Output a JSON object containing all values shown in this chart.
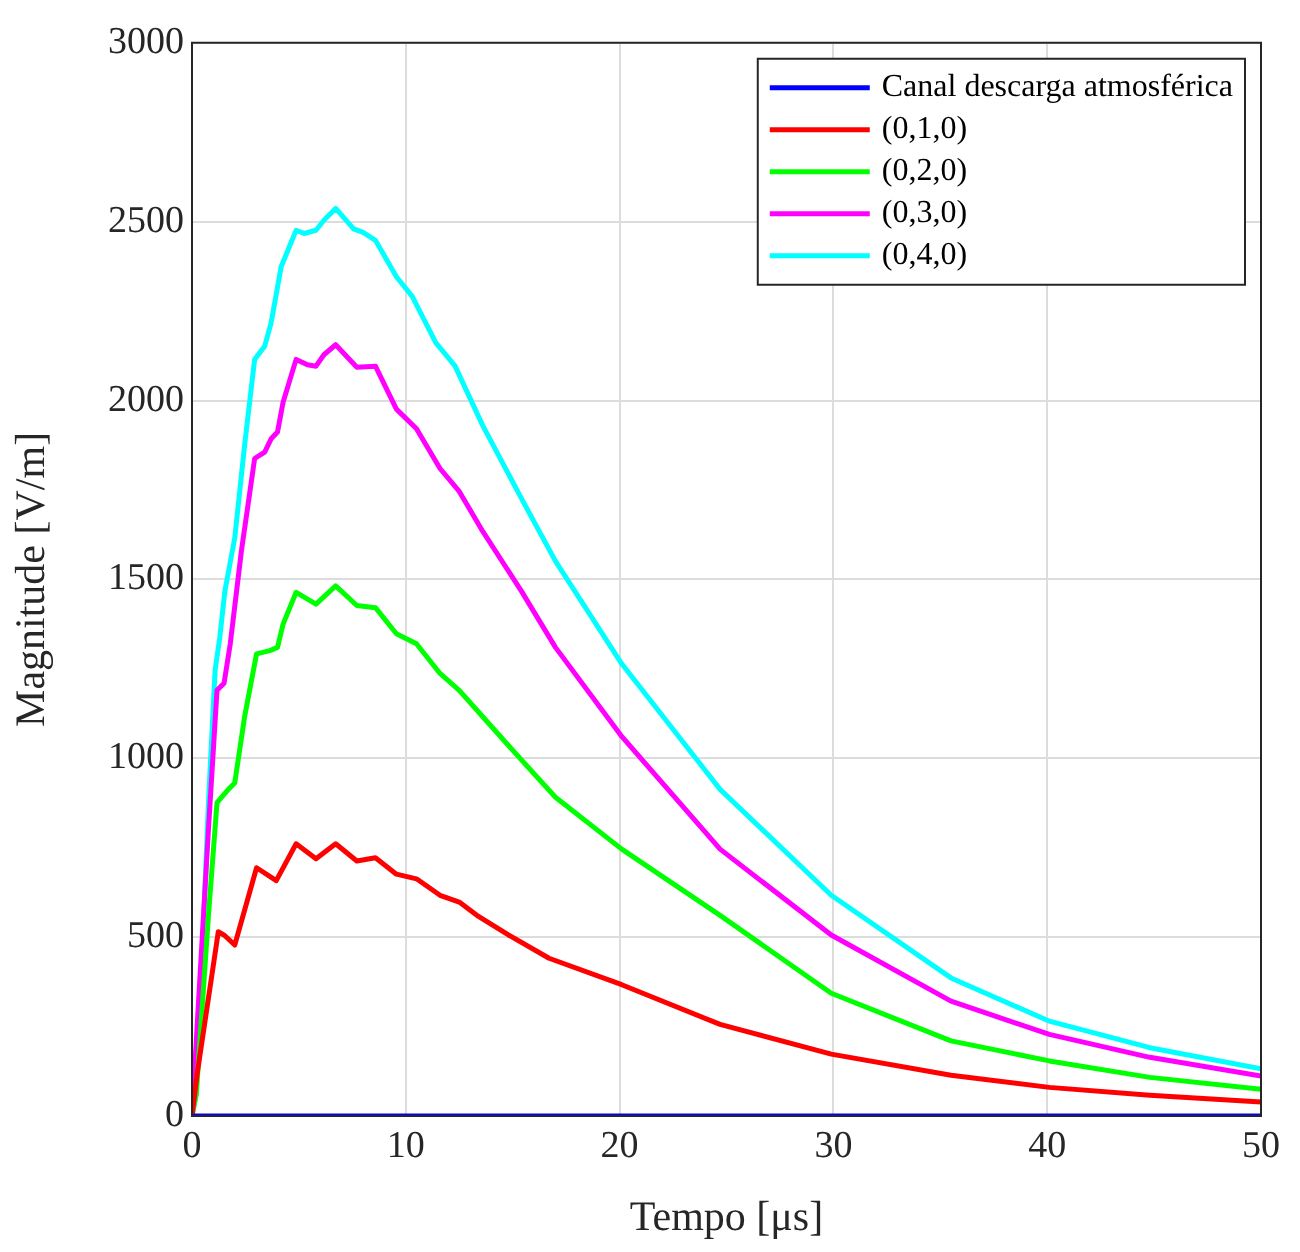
{
  "chart_data": {
    "type": "line",
    "xlabel": "Tempo [μs]",
    "ylabel": "Magnitude [V/m]",
    "xlim": [
      0,
      50
    ],
    "xticks": [
      0,
      10,
      20,
      30,
      40,
      50
    ],
    "ylim": [
      0,
      3000
    ],
    "yticks": [
      0,
      500,
      1000,
      1500,
      2000,
      2500,
      3000
    ],
    "grid": true,
    "legend": "top right",
    "marker": "none",
    "series": [
      {
        "name": "Canal descarga atmosférica",
        "color": "#0000ff",
        "x": [
          0,
          50
        ],
        "values": [
          0,
          0
        ]
      },
      {
        "name": "(0,1,0)",
        "color": "#ff0000",
        "x": [
          0,
          0.24,
          1.23,
          1.54,
          2.0,
          3.02,
          3.94,
          4.87,
          5.8,
          6.72,
          7.71,
          8.58,
          9.56,
          10.5,
          11.6,
          12.5,
          13.4,
          14.8,
          16.7,
          20.1,
          24.7,
          29.9,
          35.5,
          40.1,
          44.8,
          50
        ],
        "values": [
          0,
          117,
          515,
          504,
          478,
          694,
          658,
          761,
          719,
          761,
          713,
          722,
          676,
          663,
          617,
          598,
          558,
          506,
          441,
          367,
          256,
          173,
          114,
          80,
          58,
          39
        ]
      },
      {
        "name": "(0,2,0)",
        "color": "#00ff00",
        "x": [
          0,
          0.2,
          0.77,
          1.17,
          1.7,
          2.0,
          2.46,
          3.02,
          3.64,
          4.0,
          4.26,
          4.87,
          5.8,
          6.72,
          7.71,
          8.58,
          9.56,
          10.5,
          11.6,
          12.5,
          13.6,
          15.4,
          17.0,
          20.1,
          24.7,
          29.9,
          35.5,
          40.1,
          44.8,
          50
        ],
        "values": [
          0,
          62,
          561,
          876,
          913,
          931,
          1116,
          1292,
          1301,
          1310,
          1375,
          1464,
          1431,
          1482,
          1427,
          1421,
          1348,
          1320,
          1237,
          1190,
          1116,
          996,
          891,
          746,
          561,
          343,
          210,
          154,
          108,
          75
        ]
      },
      {
        "name": "(0,3,0)",
        "color": "#ff00ff",
        "x": [
          0,
          0.77,
          1.17,
          1.5,
          1.79,
          2.31,
          2.93,
          3.4,
          3.7,
          4.0,
          4.26,
          4.87,
          5.4,
          5.8,
          6.17,
          6.72,
          7.71,
          8.58,
          9.56,
          10.5,
          11.6,
          12.5,
          13.6,
          15.4,
          17.0,
          20.1,
          24.7,
          29.9,
          35.5,
          40.1,
          44.8,
          50
        ],
        "values": [
          0,
          802,
          1190,
          1210,
          1320,
          1579,
          1838,
          1856,
          1893,
          1912,
          1995,
          2115,
          2100,
          2096,
          2128,
          2156,
          2093,
          2096,
          1976,
          1921,
          1810,
          1746,
          1634,
          1468,
          1310,
          1061,
          746,
          506,
          321,
          228,
          164,
          112
        ]
      },
      {
        "name": "(0,4,0)",
        "color": "#00ffff",
        "x": [
          0,
          0.2,
          0.77,
          1.08,
          1.3,
          1.54,
          2.0,
          2.46,
          2.93,
          3.4,
          3.7,
          4.17,
          4.87,
          5.25,
          5.8,
          6.17,
          6.72,
          7.56,
          8.0,
          8.58,
          9.56,
          10.3,
          11.4,
          12.3,
          13.6,
          15.4,
          17.0,
          20.1,
          24.7,
          29.9,
          35.5,
          40.1,
          44.8,
          50
        ],
        "values": [
          0,
          62,
          876,
          1246,
          1338,
          1468,
          1616,
          1875,
          2115,
          2152,
          2217,
          2374,
          2476,
          2467,
          2476,
          2504,
          2537,
          2480,
          2470,
          2448,
          2346,
          2291,
          2162,
          2097,
          1930,
          1727,
          1551,
          1264,
          913,
          617,
          386,
          265,
          191,
          132
        ]
      }
    ]
  }
}
